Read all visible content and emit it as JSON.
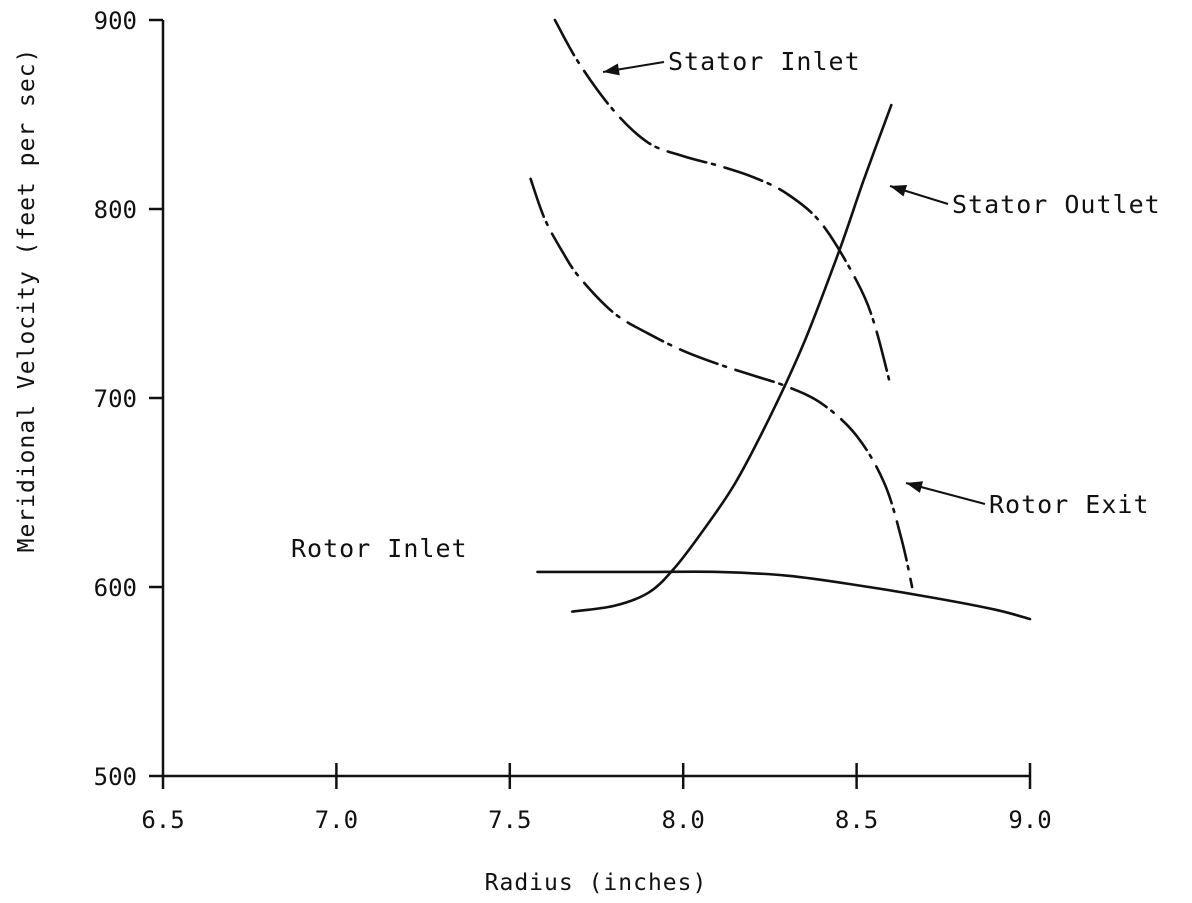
{
  "chart_data": {
    "type": "line",
    "title": "",
    "xlabel": "Radius (inches)",
    "ylabel": "Meridional Velocity (feet per sec)",
    "xlim": [
      6.5,
      9.0
    ],
    "ylim": [
      500,
      900
    ],
    "xticks": [
      6.5,
      7.0,
      7.5,
      8.0,
      8.5,
      9.0
    ],
    "xtick_labels": [
      "6.5",
      "7.0",
      "7.5",
      "8.0",
      "8.5",
      "9.0"
    ],
    "yticks": [
      500,
      600,
      700,
      800,
      900
    ],
    "ytick_labels": [
      "500",
      "600",
      "700",
      "800",
      "900"
    ],
    "grid": false,
    "series": [
      {
        "name": "Stator Inlet",
        "points": [
          [
            7.63,
            900
          ],
          [
            7.7,
            877
          ],
          [
            7.8,
            852
          ],
          [
            7.9,
            835
          ],
          [
            8.0,
            828
          ],
          [
            8.1,
            823
          ],
          [
            8.2,
            817
          ],
          [
            8.3,
            808
          ],
          [
            8.4,
            792
          ],
          [
            8.5,
            762
          ],
          [
            8.55,
            740
          ],
          [
            8.6,
            705
          ]
        ]
      },
      {
        "name": "Stator Outlet",
        "points": [
          [
            7.68,
            587
          ],
          [
            7.8,
            590
          ],
          [
            7.9,
            597
          ],
          [
            7.97,
            609
          ],
          [
            8.05,
            628
          ],
          [
            8.15,
            655
          ],
          [
            8.25,
            690
          ],
          [
            8.35,
            730
          ],
          [
            8.45,
            778
          ],
          [
            8.52,
            815
          ],
          [
            8.6,
            855
          ]
        ]
      },
      {
        "name": "Rotor Exit",
        "points": [
          [
            7.56,
            816
          ],
          [
            7.6,
            795
          ],
          [
            7.65,
            778
          ],
          [
            7.7,
            764
          ],
          [
            7.8,
            745
          ],
          [
            7.9,
            734
          ],
          [
            8.0,
            725
          ],
          [
            8.1,
            718
          ],
          [
            8.2,
            712
          ],
          [
            8.3,
            706
          ],
          [
            8.4,
            697
          ],
          [
            8.5,
            680
          ],
          [
            8.58,
            655
          ],
          [
            8.63,
            625
          ],
          [
            8.66,
            600
          ]
        ]
      },
      {
        "name": "Rotor Inlet",
        "points": [
          [
            7.58,
            608
          ],
          [
            7.7,
            608
          ],
          [
            7.9,
            608
          ],
          [
            8.1,
            608
          ],
          [
            8.3,
            606
          ],
          [
            8.5,
            601
          ],
          [
            8.7,
            595
          ],
          [
            8.9,
            588
          ],
          [
            9.0,
            583
          ]
        ]
      }
    ],
    "annotations": [
      {
        "text": "Stator Inlet",
        "series": "Stator Inlet",
        "arrow": true
      },
      {
        "text": "Stator Outlet",
        "series": "Stator Outlet",
        "arrow": true
      },
      {
        "text": "Rotor Exit",
        "series": "Rotor Exit",
        "arrow": true
      },
      {
        "text": "Rotor Inlet",
        "series": "Rotor Inlet",
        "arrow": false
      }
    ]
  }
}
